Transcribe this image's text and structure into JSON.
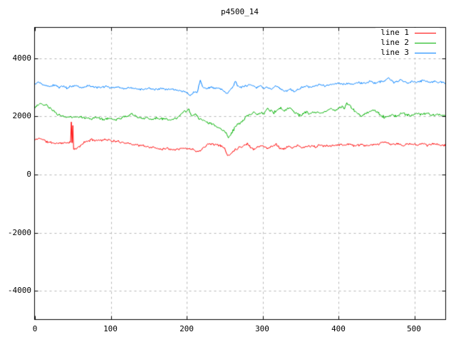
{
  "chart_data": {
    "type": "line",
    "title": "p4500_14",
    "xlabel": "",
    "ylabel": "",
    "xlim": [
      0,
      541
    ],
    "ylim": [
      -5000,
      5000
    ],
    "xticks": [
      0,
      100,
      200,
      300,
      400,
      500
    ],
    "yticks": [
      4000,
      2000,
      0,
      -2000,
      -4000
    ],
    "xtick_labels": [
      "0",
      "100",
      "200",
      "300",
      "400",
      "500"
    ],
    "ytick_labels": [
      "4000",
      "2000",
      "0",
      "-2000",
      "-4000"
    ],
    "grid": true,
    "legend_position": "top-right",
    "background": "#ffffff",
    "border_color": "#000000",
    "grid_color": "#b8b8b8",
    "series": [
      {
        "name": "line 1",
        "color": "#ff0000",
        "noise": 50,
        "seed": 11,
        "anchors": [
          [
            0,
            1190
          ],
          [
            4,
            1230
          ],
          [
            8,
            1250
          ],
          [
            12,
            1180
          ],
          [
            16,
            1120
          ],
          [
            22,
            1100
          ],
          [
            28,
            1070
          ],
          [
            34,
            1090
          ],
          [
            40,
            1080
          ],
          [
            44,
            1110
          ],
          [
            47,
            1130
          ],
          [
            48,
            1800
          ],
          [
            49,
            1050
          ],
          [
            50,
            1680
          ],
          [
            51,
            870
          ],
          [
            54,
            880
          ],
          [
            58,
            950
          ],
          [
            64,
            1090
          ],
          [
            70,
            1160
          ],
          [
            76,
            1200
          ],
          [
            82,
            1180
          ],
          [
            88,
            1190
          ],
          [
            95,
            1210
          ],
          [
            102,
            1150
          ],
          [
            110,
            1130
          ],
          [
            118,
            1100
          ],
          [
            126,
            1060
          ],
          [
            134,
            1020
          ],
          [
            142,
            990
          ],
          [
            150,
            950
          ],
          [
            158,
            920
          ],
          [
            166,
            880
          ],
          [
            174,
            900
          ],
          [
            182,
            870
          ],
          [
            190,
            890
          ],
          [
            198,
            900
          ],
          [
            206,
            880
          ],
          [
            212,
            830
          ],
          [
            217,
            790
          ],
          [
            222,
            950
          ],
          [
            228,
            1040
          ],
          [
            234,
            1060
          ],
          [
            240,
            1020
          ],
          [
            246,
            980
          ],
          [
            250,
            900
          ],
          [
            253,
            700
          ],
          [
            256,
            650
          ],
          [
            259,
            750
          ],
          [
            263,
            850
          ],
          [
            268,
            920
          ],
          [
            274,
            980
          ],
          [
            280,
            1060
          ],
          [
            284,
            950
          ],
          [
            288,
            870
          ],
          [
            293,
            950
          ],
          [
            298,
            1000
          ],
          [
            303,
            940
          ],
          [
            308,
            900
          ],
          [
            313,
            990
          ],
          [
            318,
            1050
          ],
          [
            323,
            900
          ],
          [
            328,
            880
          ],
          [
            334,
            960
          ],
          [
            340,
            930
          ],
          [
            346,
            990
          ],
          [
            352,
            920
          ],
          [
            358,
            960
          ],
          [
            364,
            990
          ],
          [
            370,
            950
          ],
          [
            376,
            1010
          ],
          [
            382,
            980
          ],
          [
            390,
            1000
          ],
          [
            398,
            1030
          ],
          [
            406,
            1010
          ],
          [
            414,
            1060
          ],
          [
            422,
            980
          ],
          [
            430,
            1030
          ],
          [
            438,
            990
          ],
          [
            446,
            1010
          ],
          [
            454,
            1060
          ],
          [
            462,
            1120
          ],
          [
            470,
            1030
          ],
          [
            478,
            1060
          ],
          [
            486,
            1000
          ],
          [
            494,
            1060
          ],
          [
            502,
            1030
          ],
          [
            510,
            1070
          ],
          [
            518,
            1010
          ],
          [
            526,
            1050
          ],
          [
            534,
            1010
          ],
          [
            541,
            1030
          ]
        ]
      },
      {
        "name": "line 2",
        "color": "#00b000",
        "noise": 55,
        "seed": 23,
        "anchors": [
          [
            0,
            2330
          ],
          [
            8,
            2450
          ],
          [
            11,
            2380
          ],
          [
            14,
            2400
          ],
          [
            18,
            2300
          ],
          [
            24,
            2200
          ],
          [
            30,
            2080
          ],
          [
            36,
            2010
          ],
          [
            42,
            1980
          ],
          [
            50,
            1960
          ],
          [
            58,
            2000
          ],
          [
            66,
            1960
          ],
          [
            74,
            1920
          ],
          [
            82,
            1960
          ],
          [
            90,
            1900
          ],
          [
            98,
            1940
          ],
          [
            106,
            1880
          ],
          [
            114,
            1960
          ],
          [
            122,
            2000
          ],
          [
            126,
            2080
          ],
          [
            130,
            2060
          ],
          [
            136,
            1980
          ],
          [
            142,
            1930
          ],
          [
            148,
            1960
          ],
          [
            154,
            1900
          ],
          [
            160,
            1950
          ],
          [
            166,
            1900
          ],
          [
            172,
            1930
          ],
          [
            178,
            1860
          ],
          [
            184,
            1920
          ],
          [
            190,
            2000
          ],
          [
            196,
            2180
          ],
          [
            200,
            2150
          ],
          [
            203,
            2230
          ],
          [
            207,
            1990
          ],
          [
            211,
            2080
          ],
          [
            216,
            1940
          ],
          [
            222,
            1870
          ],
          [
            228,
            1800
          ],
          [
            234,
            1720
          ],
          [
            240,
            1640
          ],
          [
            246,
            1560
          ],
          [
            251,
            1480
          ],
          [
            255,
            1280
          ],
          [
            259,
            1420
          ],
          [
            263,
            1600
          ],
          [
            267,
            1720
          ],
          [
            272,
            1800
          ],
          [
            278,
            1990
          ],
          [
            283,
            2060
          ],
          [
            288,
            2140
          ],
          [
            293,
            2080
          ],
          [
            298,
            2130
          ],
          [
            302,
            2080
          ],
          [
            306,
            2270
          ],
          [
            310,
            2200
          ],
          [
            315,
            2130
          ],
          [
            319,
            2230
          ],
          [
            324,
            2290
          ],
          [
            329,
            2170
          ],
          [
            334,
            2300
          ],
          [
            338,
            2230
          ],
          [
            342,
            2150
          ],
          [
            346,
            2090
          ],
          [
            350,
            2010
          ],
          [
            354,
            2080
          ],
          [
            358,
            2150
          ],
          [
            362,
            2090
          ],
          [
            366,
            2130
          ],
          [
            371,
            2160
          ],
          [
            376,
            2100
          ],
          [
            380,
            2150
          ],
          [
            385,
            2200
          ],
          [
            390,
            2280
          ],
          [
            395,
            2200
          ],
          [
            400,
            2250
          ],
          [
            405,
            2330
          ],
          [
            408,
            2280
          ],
          [
            411,
            2450
          ],
          [
            414,
            2380
          ],
          [
            418,
            2270
          ],
          [
            422,
            2170
          ],
          [
            426,
            2100
          ],
          [
            430,
            2010
          ],
          [
            434,
            2090
          ],
          [
            438,
            2130
          ],
          [
            442,
            2180
          ],
          [
            446,
            2220
          ],
          [
            450,
            2160
          ],
          [
            454,
            2080
          ],
          [
            458,
            2010
          ],
          [
            462,
            1960
          ],
          [
            466,
            2010
          ],
          [
            470,
            2060
          ],
          [
            475,
            2010
          ],
          [
            480,
            2060
          ],
          [
            485,
            2110
          ],
          [
            490,
            2060
          ],
          [
            495,
            2010
          ],
          [
            500,
            2060
          ],
          [
            505,
            2090
          ],
          [
            510,
            2060
          ],
          [
            515,
            2100
          ],
          [
            520,
            2080
          ],
          [
            525,
            2040
          ],
          [
            530,
            2070
          ],
          [
            535,
            2040
          ],
          [
            541,
            2060
          ]
        ]
      },
      {
        "name": "line 3",
        "color": "#0080ff",
        "noise": 42,
        "seed": 37,
        "anchors": [
          [
            0,
            3100
          ],
          [
            4,
            3180
          ],
          [
            8,
            3120
          ],
          [
            14,
            3060
          ],
          [
            20,
            3030
          ],
          [
            26,
            3080
          ],
          [
            32,
            3000
          ],
          [
            38,
            3050
          ],
          [
            42,
            2980
          ],
          [
            48,
            3040
          ],
          [
            55,
            3060
          ],
          [
            62,
            3000
          ],
          [
            70,
            3050
          ],
          [
            78,
            3010
          ],
          [
            86,
            2990
          ],
          [
            94,
            3030
          ],
          [
            102,
            2980
          ],
          [
            110,
            3010
          ],
          [
            118,
            2960
          ],
          [
            126,
            3000
          ],
          [
            134,
            2950
          ],
          [
            142,
            2930
          ],
          [
            150,
            2970
          ],
          [
            158,
            2920
          ],
          [
            166,
            2950
          ],
          [
            174,
            2920
          ],
          [
            182,
            2930
          ],
          [
            190,
            2890
          ],
          [
            196,
            2860
          ],
          [
            201,
            2800
          ],
          [
            205,
            2720
          ],
          [
            209,
            2810
          ],
          [
            214,
            2860
          ],
          [
            218,
            3240
          ],
          [
            221,
            3000
          ],
          [
            226,
            2950
          ],
          [
            232,
            3000
          ],
          [
            238,
            2970
          ],
          [
            244,
            2950
          ],
          [
            249,
            2880
          ],
          [
            253,
            2770
          ],
          [
            257,
            2900
          ],
          [
            261,
            3000
          ],
          [
            264,
            3220
          ],
          [
            267,
            3060
          ],
          [
            272,
            3000
          ],
          [
            277,
            3050
          ],
          [
            282,
            3090
          ],
          [
            287,
            3050
          ],
          [
            292,
            3000
          ],
          [
            297,
            3040
          ],
          [
            302,
            2960
          ],
          [
            307,
            3000
          ],
          [
            312,
            2950
          ],
          [
            317,
            3040
          ],
          [
            322,
            3000
          ],
          [
            327,
            2900
          ],
          [
            332,
            2860
          ],
          [
            337,
            2940
          ],
          [
            342,
            2850
          ],
          [
            347,
            2930
          ],
          [
            352,
            2990
          ],
          [
            358,
            3040
          ],
          [
            364,
            3010
          ],
          [
            370,
            3060
          ],
          [
            376,
            3100
          ],
          [
            382,
            3050
          ],
          [
            388,
            3090
          ],
          [
            394,
            3110
          ],
          [
            400,
            3140
          ],
          [
            406,
            3100
          ],
          [
            412,
            3140
          ],
          [
            418,
            3100
          ],
          [
            424,
            3170
          ],
          [
            430,
            3140
          ],
          [
            436,
            3160
          ],
          [
            442,
            3200
          ],
          [
            448,
            3150
          ],
          [
            454,
            3180
          ],
          [
            460,
            3220
          ],
          [
            466,
            3340
          ],
          [
            469,
            3260
          ],
          [
            473,
            3160
          ],
          [
            477,
            3200
          ],
          [
            482,
            3250
          ],
          [
            487,
            3200
          ],
          [
            492,
            3150
          ],
          [
            497,
            3200
          ],
          [
            502,
            3160
          ],
          [
            507,
            3200
          ],
          [
            512,
            3250
          ],
          [
            517,
            3200
          ],
          [
            522,
            3160
          ],
          [
            527,
            3210
          ],
          [
            532,
            3160
          ],
          [
            537,
            3190
          ],
          [
            541,
            3130
          ]
        ]
      }
    ]
  }
}
